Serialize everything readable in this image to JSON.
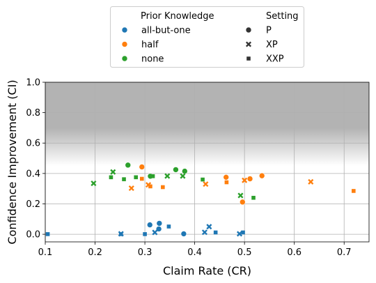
{
  "chart_data": {
    "type": "scatter",
    "title": "",
    "xlabel": "Claim Rate (CR)",
    "ylabel": "Confidence Improvement (CI)",
    "xlim": [
      0.1,
      0.75
    ],
    "ylim": [
      -0.05,
      1.0
    ],
    "xticks": [
      "0.1",
      "0.2",
      "0.3",
      "0.4",
      "0.5",
      "0.6",
      "0.7"
    ],
    "yticks": [
      "0.0",
      "0.2",
      "0.4",
      "0.6",
      "0.8",
      "1.0"
    ],
    "grid": true,
    "background_band": {
      "from": 0.45,
      "to": 1.0,
      "color": "#b3b3b3",
      "description": "gradient shading, fading toward lower values"
    },
    "legend": {
      "placement": "top-center, outside plot",
      "hue_title": "Prior Knowledge",
      "style_title": "Setting",
      "hue_entries": [
        {
          "label": "all-but-one",
          "color": "#1f77b4"
        },
        {
          "label": "half",
          "color": "#ff7f0e"
        },
        {
          "label": "none",
          "color": "#2ca02c"
        }
      ],
      "style_entries": [
        {
          "label": "P",
          "marker": "circle"
        },
        {
          "label": "XP",
          "marker": "x"
        },
        {
          "label": "XXP",
          "marker": "square"
        }
      ]
    },
    "series": [
      {
        "name": "all-but-one",
        "color": "#1f77b4",
        "P": [
          [
            0.31,
            0.062
          ],
          [
            0.328,
            0.035
          ],
          [
            0.329,
            0.072
          ],
          [
            0.378,
            0.003
          ]
        ],
        "XP": [
          [
            0.252,
            0.003
          ],
          [
            0.32,
            0.012
          ],
          [
            0.42,
            0.013
          ],
          [
            0.429,
            0.05
          ],
          [
            0.49,
            0.003
          ]
        ],
        "XXP": [
          [
            0.105,
            0.001
          ],
          [
            0.252,
            0.001
          ],
          [
            0.3,
            0.001
          ],
          [
            0.348,
            0.051
          ],
          [
            0.442,
            0.012
          ],
          [
            0.497,
            0.012
          ]
        ]
      },
      {
        "name": "half",
        "color": "#ff7f0e",
        "P": [
          [
            0.294,
            0.443
          ],
          [
            0.463,
            0.375
          ],
          [
            0.496,
            0.212
          ],
          [
            0.511,
            0.365
          ],
          [
            0.535,
            0.385
          ]
        ],
        "XP": [
          [
            0.273,
            0.303
          ],
          [
            0.307,
            0.325
          ],
          [
            0.422,
            0.33
          ],
          [
            0.5,
            0.355
          ],
          [
            0.633,
            0.345
          ]
        ],
        "XXP": [
          [
            0.294,
            0.365
          ],
          [
            0.311,
            0.315
          ],
          [
            0.336,
            0.31
          ],
          [
            0.464,
            0.342
          ],
          [
            0.719,
            0.285
          ]
        ]
      },
      {
        "name": "none",
        "color": "#2ca02c",
        "P": [
          [
            0.266,
            0.455
          ],
          [
            0.311,
            0.382
          ],
          [
            0.362,
            0.425
          ],
          [
            0.38,
            0.415
          ]
        ],
        "XP": [
          [
            0.197,
            0.335
          ],
          [
            0.236,
            0.41
          ],
          [
            0.345,
            0.383
          ],
          [
            0.376,
            0.383
          ],
          [
            0.492,
            0.255
          ]
        ],
        "XXP": [
          [
            0.232,
            0.375
          ],
          [
            0.258,
            0.362
          ],
          [
            0.282,
            0.375
          ],
          [
            0.316,
            0.382
          ],
          [
            0.416,
            0.36
          ],
          [
            0.518,
            0.24
          ]
        ]
      }
    ]
  }
}
